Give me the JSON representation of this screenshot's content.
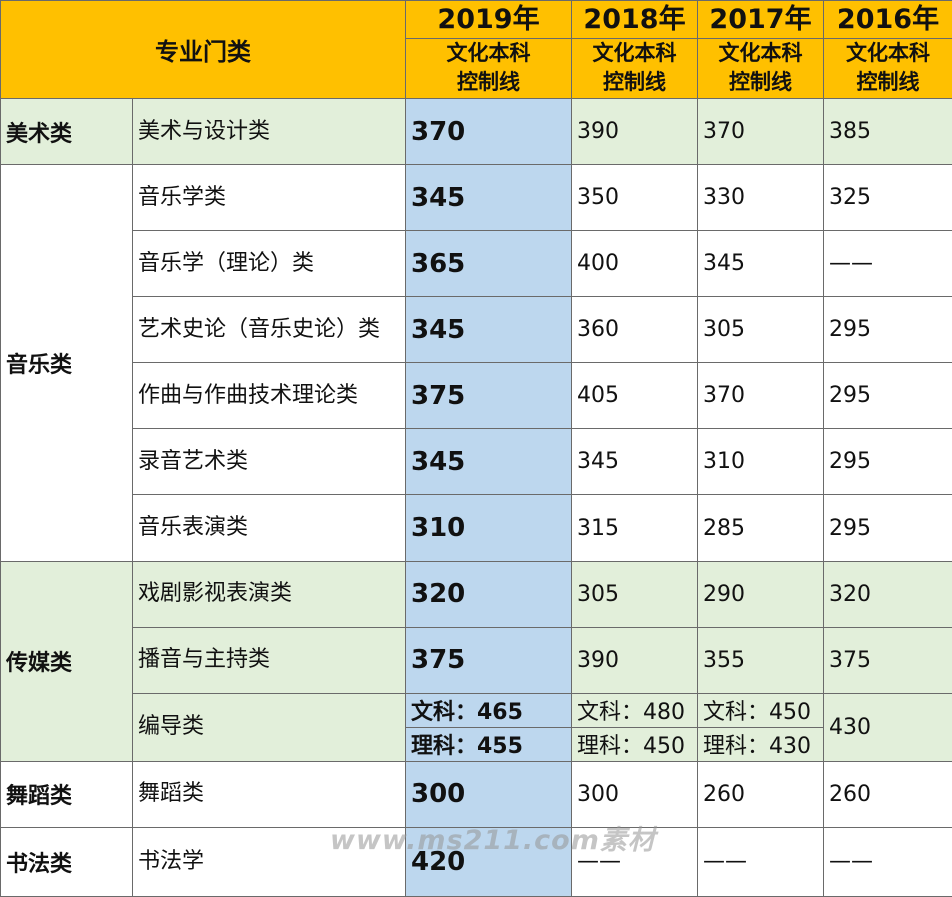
{
  "header": {
    "major_category": "专业门类",
    "subtitle_line1": "文化本科",
    "subtitle_line2": "控制线",
    "years": [
      "2019年",
      "2018年",
      "2017年",
      "2016年"
    ]
  },
  "rows": [
    {
      "category": "美术类",
      "major": "美术与设计类",
      "y2019": "370",
      "y2018": "390",
      "y2017": "370",
      "y2016": "385"
    },
    {
      "category": "音乐类",
      "major": "音乐学类",
      "y2019": "345",
      "y2018": "350",
      "y2017": "330",
      "y2016": "325"
    },
    {
      "major": "音乐学（理论）类",
      "y2019": "365",
      "y2018": "400",
      "y2017": "345",
      "y2016": "——"
    },
    {
      "major": "艺术史论（音乐史论）类",
      "y2019": "345",
      "y2018": "360",
      "y2017": "305",
      "y2016": "295"
    },
    {
      "major": "作曲与作曲技术理论类",
      "y2019": "375",
      "y2018": "405",
      "y2017": "370",
      "y2016": "295"
    },
    {
      "major": "录音艺术类",
      "y2019": "345",
      "y2018": "345",
      "y2017": "310",
      "y2016": "295"
    },
    {
      "major": "音乐表演类",
      "y2019": "310",
      "y2018": "315",
      "y2017": "285",
      "y2016": "295"
    },
    {
      "category": "传媒类",
      "major": "戏剧影视表演类",
      "y2019": "320",
      "y2018": "305",
      "y2017": "290",
      "y2016": "320"
    },
    {
      "major": "播音与主持类",
      "y2019": "375",
      "y2018": "390",
      "y2017": "355",
      "y2016": "375"
    },
    {
      "major": "编导类",
      "y2019_wen": "文科：465",
      "y2019_li": "理科：455",
      "y2018_wen": "文科：480",
      "y2018_li": "理科：450",
      "y2017_wen": "文科：450",
      "y2017_li": "理科：430",
      "y2016": "430"
    },
    {
      "category": "舞蹈类",
      "major": "舞蹈类",
      "y2019": "300",
      "y2018": "300",
      "y2017": "260",
      "y2016": "260"
    },
    {
      "category": "书法类",
      "major": "书法学",
      "y2019": "420",
      "y2018": "——",
      "y2017": "——",
      "y2016": "——"
    }
  ],
  "watermark": "www.ms211.com素材",
  "colors": {
    "header": "#ffc000",
    "green_band": "#e2efda",
    "col2019": "#bdd7ee",
    "border": "#6a6a6a"
  }
}
